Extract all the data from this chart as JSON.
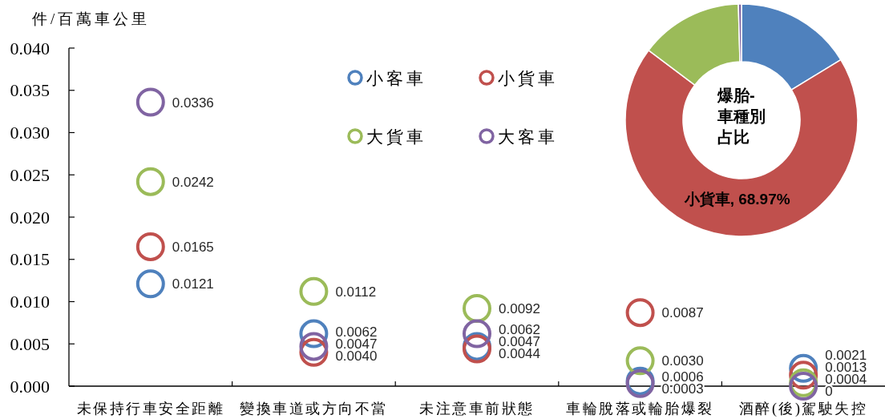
{
  "chart_data": [
    {
      "type": "scatter",
      "ylabel": "件/百萬車公里",
      "categories": [
        "未保持行車安全距離",
        "變換車道或方向不當",
        "未注意車前狀態",
        "車輪脫落或輪胎爆裂",
        "酒醉(後)駕駛失控"
      ],
      "series": [
        {
          "name": "小客車",
          "color": "#4f81bd",
          "values": [
            0.0121,
            0.0062,
            0.0047,
            0.0006,
            0.0021
          ],
          "value_labels": [
            "0.0121",
            "0.0062",
            "0.0047",
            "0.0006",
            "0.0021"
          ]
        },
        {
          "name": "小貨車",
          "color": "#c0504d",
          "values": [
            0.0165,
            0.004,
            0.0044,
            0.0087,
            0.0013
          ],
          "value_labels": [
            "0.0165",
            "0.0040",
            "0.0044",
            "0.0087",
            "0.0013"
          ]
        },
        {
          "name": "大貨車",
          "color": "#9bbb59",
          "values": [
            0.0242,
            0.0112,
            0.0092,
            0.003,
            0.0004
          ],
          "value_labels": [
            "0.0242",
            "0.0112",
            "0.0092",
            "0.0030",
            "0.0004"
          ]
        },
        {
          "name": "大客車",
          "color": "#8064a2",
          "values": [
            0.0336,
            0.0047,
            0.0062,
            0.0003,
            0
          ],
          "value_labels": [
            "0.0336",
            "0.0047",
            "0.0062",
            "0.0003",
            "0"
          ]
        }
      ],
      "ylim": [
        0,
        0.04
      ],
      "yticks": [
        {
          "value": 0,
          "label": "0.000"
        },
        {
          "value": 0.005,
          "label": "0.005"
        },
        {
          "value": 0.01,
          "label": "0.010"
        },
        {
          "value": 0.015,
          "label": "0.015"
        },
        {
          "value": 0.02,
          "label": "0.020"
        },
        {
          "value": 0.025,
          "label": "0.025"
        },
        {
          "value": 0.03,
          "label": "0.030"
        },
        {
          "value": 0.035,
          "label": "0.035"
        },
        {
          "value": 0.04,
          "label": "0.040"
        }
      ],
      "legend": "top",
      "marker": "circle"
    },
    {
      "type": "donut",
      "title": "爆胎-車種別占比",
      "categories": [
        null,
        null,
        null,
        null
      ],
      "values": [
        16.3,
        68.97,
        14.3,
        0.43
      ],
      "colors": [
        "#4f81bd",
        "#c0504d",
        "#9bbb59",
        "#8064a2"
      ],
      "value_labels": [
        null,
        "小貨車, 68.97%",
        null,
        null
      ]
    }
  ]
}
